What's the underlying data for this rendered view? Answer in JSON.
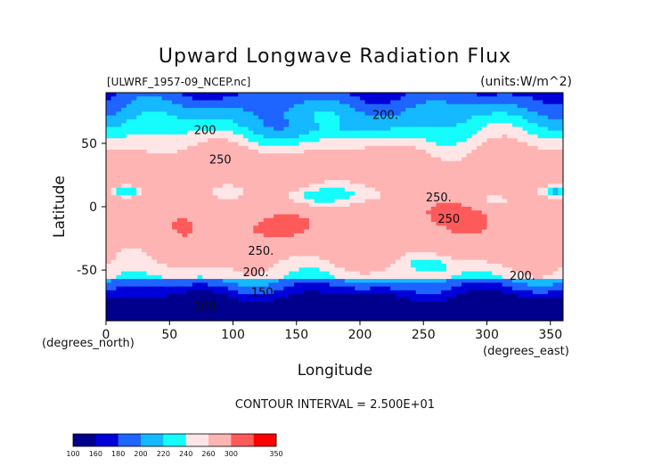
{
  "chart_data": {
    "type": "heatmap",
    "title": "Upward Longwave Radiation Flux",
    "subtitle_left": "[ULWRF_1957-09_NCEP.nc]",
    "subtitle_right": "(units:W/m^2)",
    "xlabel": "Longitude",
    "ylabel": "Latitude",
    "x_unit_label": "(degrees_east)",
    "y_unit_label": "(degrees_north)",
    "xlim": [
      0,
      360
    ],
    "ylim": [
      -90,
      90
    ],
    "x_ticks": [
      0,
      50,
      100,
      150,
      200,
      250,
      300,
      350
    ],
    "y_ticks": [
      -50,
      0,
      50
    ],
    "footer": "CONTOUR INTERVAL = 2.500E+01",
    "contour_labels": [
      {
        "text": "200.",
        "lon": 220,
        "lat": 72
      },
      {
        "text": "200",
        "lon": 78,
        "lat": 60
      },
      {
        "text": "250",
        "lon": 90,
        "lat": 37
      },
      {
        "text": "250.",
        "lon": 262,
        "lat": 7
      },
      {
        "text": "250",
        "lon": 270,
        "lat": -10
      },
      {
        "text": "250.",
        "lon": 122,
        "lat": -35
      },
      {
        "text": "200.",
        "lon": 118,
        "lat": -52
      },
      {
        "text": "200.",
        "lon": 328,
        "lat": -55
      },
      {
        "text": "150",
        "lon": 123,
        "lat": -68
      },
      {
        "text": "100",
        "lon": 78,
        "lat": -79
      }
    ],
    "colorbar": {
      "labels": [
        "100",
        "160",
        "180",
        "200",
        "220",
        "240",
        "260",
        "300",
        "350"
      ],
      "colors": [
        "#00008c",
        "#0000d8",
        "#1e64ff",
        "#14b9ff",
        "#14fcfc",
        "#ffe6e6",
        "#ffb4b4",
        "#ff5a5a",
        "#ff0000"
      ]
    }
  }
}
